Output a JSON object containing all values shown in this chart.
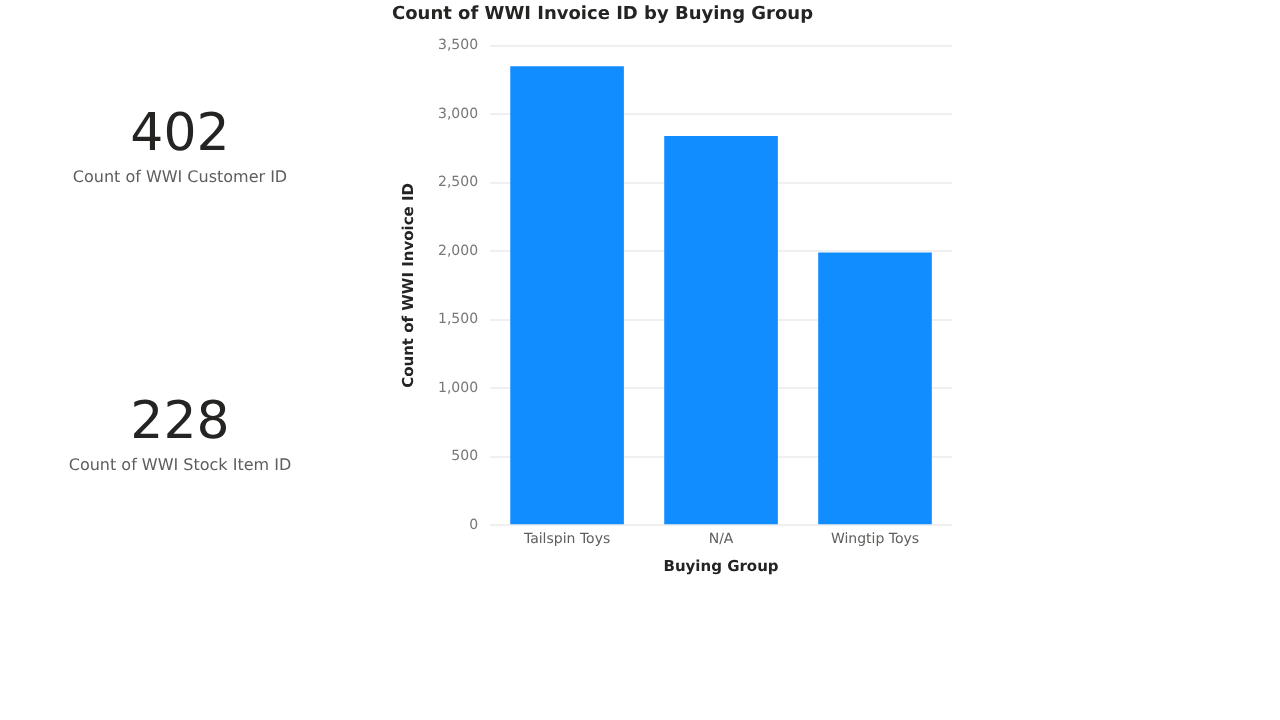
{
  "chart_data": [
    {
      "type": "other",
      "categories": [
        "Count of WWI Customer ID",
        "Count of WWI Stock Item ID"
      ],
      "values": [
        402,
        228
      ],
      "data_labels": true
    },
    {
      "type": "bar",
      "title": "Count of WWI Invoice ID by Buying Group",
      "xlabel": "Buying Group",
      "ylabel": "Count of WWI Invoice ID",
      "categories": [
        "Tailspin Toys",
        "N/A",
        "Wingtip Toys"
      ],
      "values": [
        3350,
        2840,
        1990
      ],
      "color": "#118dff",
      "ylim": [
        0,
        3500
      ],
      "yticks": [
        {
          "value": 0,
          "label": "0"
        },
        {
          "value": 500,
          "label": "500"
        },
        {
          "value": 1000,
          "label": "1,000"
        },
        {
          "value": 1500,
          "label": "1,500"
        },
        {
          "value": 2000,
          "label": "2,000"
        },
        {
          "value": 2500,
          "label": "2,500"
        },
        {
          "value": 3000,
          "label": "3,000"
        },
        {
          "value": 3500,
          "label": "3,500"
        }
      ],
      "grid": "y",
      "legend": false
    }
  ]
}
